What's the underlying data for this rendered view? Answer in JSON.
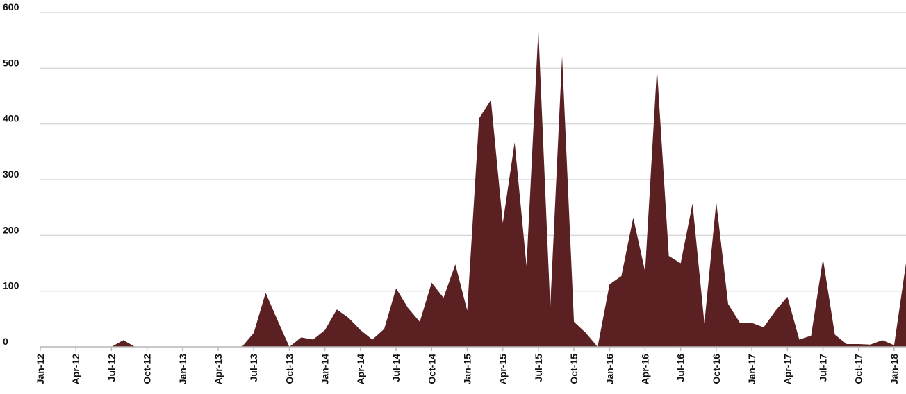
{
  "chart_data": {
    "type": "area",
    "categories": [
      "Jan-12",
      null,
      null,
      "Apr-12",
      null,
      null,
      "Jul-12",
      null,
      null,
      "Oct-12",
      null,
      null,
      "Jan-13",
      null,
      null,
      "Apr-13",
      null,
      null,
      "Jul-13",
      null,
      null,
      "Oct-13",
      null,
      null,
      "Jan-14",
      null,
      null,
      "Apr-14",
      null,
      null,
      "Jul-14",
      null,
      null,
      "Oct-14",
      null,
      null,
      "Jan-15",
      null,
      null,
      "Apr-15",
      null,
      null,
      "Jul-15",
      null,
      null,
      "Oct-15",
      null,
      null,
      "Jan-16",
      null,
      null,
      "Apr-16",
      null,
      null,
      "Jul-16",
      null,
      null,
      "Oct-16",
      null,
      null,
      "Jan-17",
      null,
      null,
      "Apr-17",
      null,
      null,
      "Jul-17",
      null,
      null,
      "Oct-17",
      null,
      null,
      "Jan-18",
      null
    ],
    "values": [
      0,
      0,
      0,
      0,
      0,
      0,
      0,
      12,
      0,
      0,
      0,
      0,
      0,
      0,
      0,
      0,
      0,
      0,
      25,
      97,
      48,
      0,
      17,
      13,
      30,
      67,
      52,
      30,
      13,
      32,
      105,
      70,
      45,
      115,
      88,
      148,
      65,
      410,
      443,
      222,
      367,
      145,
      570,
      70,
      522,
      45,
      25,
      0,
      112,
      127,
      232,
      135,
      500,
      163,
      150,
      257,
      42,
      260,
      77,
      43,
      43,
      35,
      65,
      90,
      13,
      20,
      158,
      22,
      5,
      5,
      4,
      12,
      3,
      150
    ],
    "color": "#5a2022",
    "ylim": [
      0,
      600
    ],
    "yticks": [
      0,
      100,
      200,
      300,
      400,
      500,
      600
    ],
    "grid": true
  }
}
